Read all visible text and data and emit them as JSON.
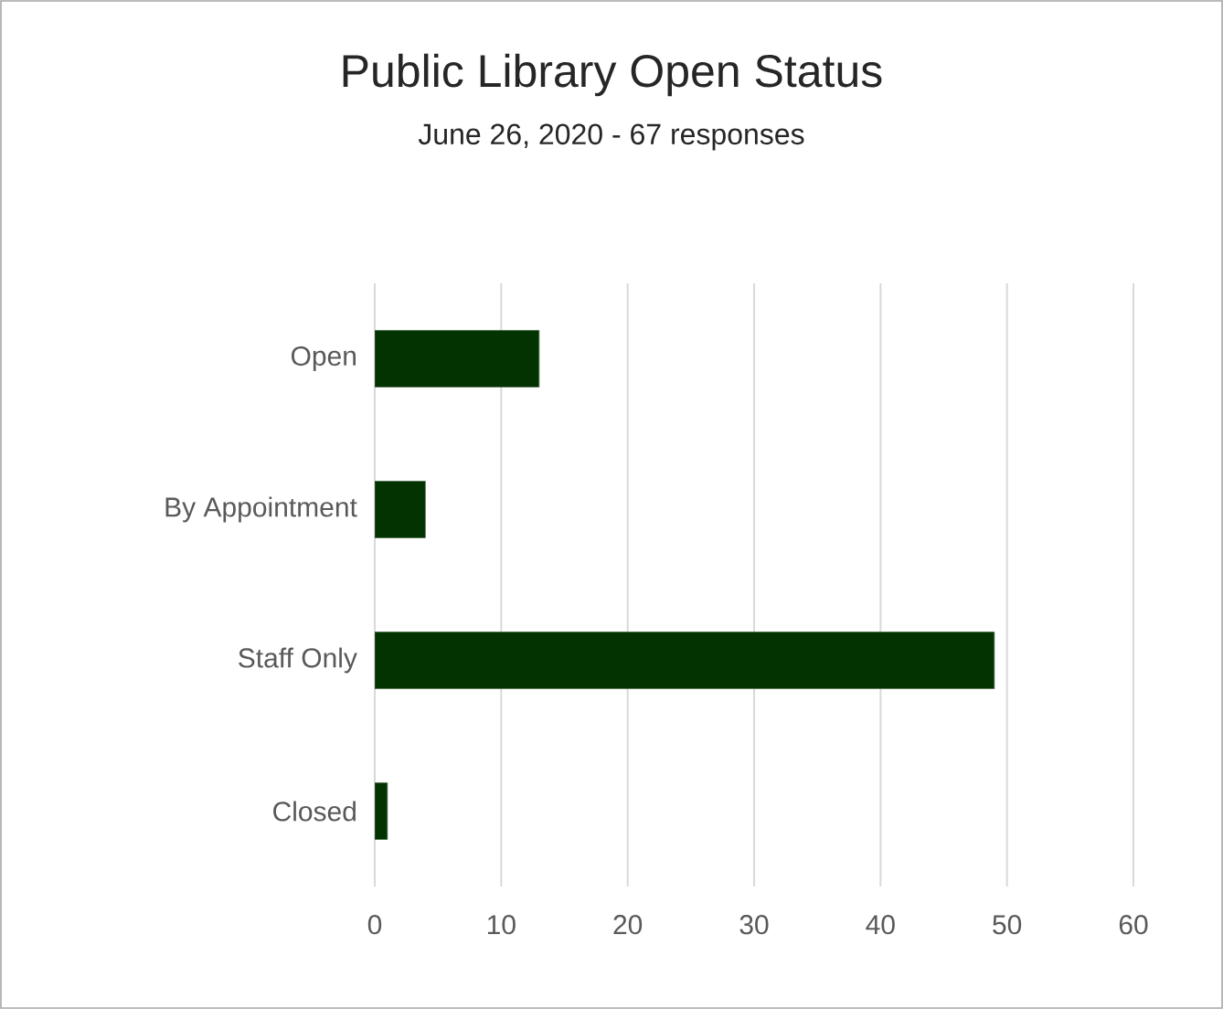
{
  "chart_data": {
    "type": "bar",
    "orientation": "horizontal",
    "title": "Public Library Open Status",
    "subtitle": "June 26, 2020 - 67 responses",
    "categories": [
      "Open",
      "By Appointment",
      "Staff Only",
      "Closed"
    ],
    "values": [
      13,
      4,
      49,
      1
    ],
    "color": "#033300",
    "xlim": [
      0,
      60
    ],
    "xticks": [
      0,
      10,
      20,
      30,
      40,
      50,
      60
    ],
    "grid": "x"
  }
}
